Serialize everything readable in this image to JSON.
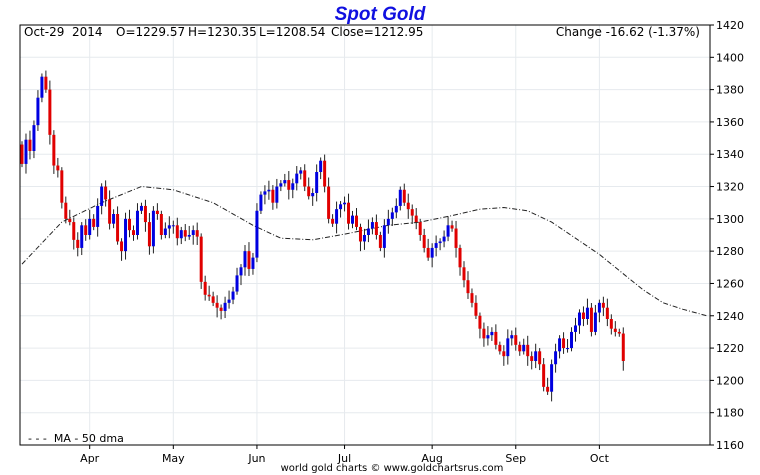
{
  "chart_data": {
    "type": "candlestick",
    "title": "Spot Gold",
    "info": {
      "date": "Oct-29  2014",
      "open": "O=1229.57",
      "high": "H=1230.35",
      "low": "L=1208.54",
      "close": "Close=1212.95",
      "change": "Change -16.62 (-1.37%)"
    },
    "footer": "world gold charts © www.goldchartsrus.com",
    "legend": "- - -  MA - 50 dma",
    "ylim": [
      1160,
      1420
    ],
    "yticks": [
      1160,
      1180,
      1200,
      1220,
      1240,
      1260,
      1280,
      1300,
      1320,
      1340,
      1360,
      1380,
      1400,
      1420
    ],
    "month_labels": [
      {
        "label": "Apr",
        "index": 17
      },
      {
        "label": "May",
        "index": 38
      },
      {
        "label": "Jun",
        "index": 59
      },
      {
        "label": "Jul",
        "index": 81
      },
      {
        "label": "Aug",
        "index": 103
      },
      {
        "label": "Sep",
        "index": 124
      },
      {
        "label": "Oct",
        "index": 145
      }
    ],
    "closes": [
      1334,
      1349,
      1342,
      1358,
      1375,
      1388,
      1380,
      1352,
      1333,
      1330,
      1310,
      1300,
      1298,
      1287,
      1282,
      1296,
      1290,
      1300,
      1295,
      1308,
      1320,
      1312,
      1297,
      1303,
      1286,
      1280,
      1300,
      1293,
      1290,
      1305,
      1308,
      1298,
      1283,
      1305,
      1303,
      1290,
      1294,
      1296,
      1296,
      1288,
      1293,
      1289,
      1290,
      1293,
      1289,
      1261,
      1253,
      1252,
      1248,
      1245,
      1243,
      1248,
      1250,
      1255,
      1265,
      1270,
      1280,
      1269,
      1276,
      1305,
      1315,
      1317,
      1318,
      1310,
      1320,
      1322,
      1324,
      1318,
      1322,
      1328,
      1330,
      1320,
      1314,
      1316,
      1329,
      1336,
      1320,
      1300,
      1297,
      1306,
      1309,
      1310,
      1297,
      1302,
      1295,
      1286,
      1290,
      1294,
      1298,
      1290,
      1282,
      1296,
      1300,
      1304,
      1308,
      1318,
      1310,
      1306,
      1302,
      1298,
      1290,
      1282,
      1276,
      1282,
      1285,
      1286,
      1289,
      1296,
      1294,
      1282,
      1270,
      1262,
      1254,
      1248,
      1240,
      1232,
      1226,
      1228,
      1230,
      1222,
      1218,
      1215,
      1226,
      1228,
      1222,
      1218,
      1222,
      1215,
      1212,
      1218,
      1210,
      1196,
      1193,
      1210,
      1218,
      1226,
      1220,
      1220,
      1230,
      1234,
      1242,
      1238,
      1245,
      1230,
      1242,
      1248,
      1245,
      1238,
      1232,
      1230,
      1229,
      1212
    ],
    "ma50_points": [
      [
        0,
        1272
      ],
      [
        10,
        1298
      ],
      [
        20,
        1310
      ],
      [
        30,
        1320
      ],
      [
        38,
        1318
      ],
      [
        48,
        1310
      ],
      [
        58,
        1296
      ],
      [
        65,
        1288
      ],
      [
        73,
        1287
      ],
      [
        82,
        1291
      ],
      [
        92,
        1296
      ],
      [
        100,
        1298
      ],
      [
        108,
        1302
      ],
      [
        115,
        1306
      ],
      [
        121,
        1307
      ],
      [
        127,
        1305
      ],
      [
        133,
        1298
      ],
      [
        139,
        1288
      ],
      [
        145,
        1278
      ],
      [
        151,
        1266
      ],
      [
        156,
        1256
      ],
      [
        161,
        1248
      ],
      [
        166,
        1244
      ],
      [
        172,
        1240
      ]
    ]
  }
}
